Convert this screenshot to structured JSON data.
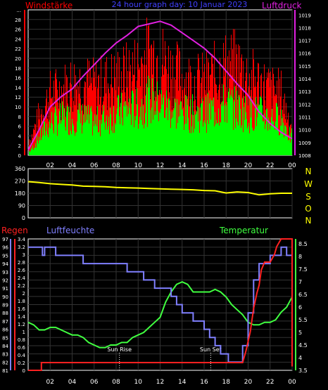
{
  "header": {
    "left_label": "Windstärke",
    "center_label": "24 hour graph day: 10 Januar 2023",
    "right_label": "Luftdruck"
  },
  "middle": {
    "compass_labels": [
      "N",
      "W",
      "S",
      "O",
      "N"
    ]
  },
  "bottom_header": {
    "rain_label": "Regen",
    "humidity_label": "Luftfeuchte",
    "temperature_label": "Temperatur"
  },
  "annotations": {
    "sunrise": "Sun Rise",
    "sunset": "Sun Set"
  },
  "colors": {
    "wind_gust": "#ff0000",
    "wind_avg": "#00ff00",
    "pressure": "#e020e0",
    "direction": "#ffff00",
    "humidity": "#8080ff",
    "temperature": "#40ff40",
    "rain": "#ff2020",
    "grid": "#333333",
    "axis_text": "#ffffff"
  },
  "chart_data": [
    {
      "type": "line",
      "name": "wind_pressure",
      "x_ticks": [
        "02",
        "04",
        "06",
        "08",
        "10",
        "12",
        "14",
        "16",
        "18",
        "20",
        "22",
        "00"
      ],
      "wind_axis_ticks": [
        "0",
        "2",
        "4",
        "6",
        "8",
        "10",
        "12",
        "14",
        "16",
        "18",
        "20",
        "22",
        "24",
        "26",
        "28",
        "..."
      ],
      "pressure_axis_ticks": [
        "1008",
        "1009",
        "1010",
        "1011",
        "1012",
        "1013",
        "1014",
        "1015",
        "1016",
        "1017",
        "1018",
        "1019"
      ],
      "wind_ylim": [
        0,
        30
      ],
      "pressure_ylim": [
        1008,
        1019.4
      ],
      "series": [
        {
          "name": "Windstärke",
          "kind": "gust",
          "x": [
            0.2,
            1,
            2,
            3,
            4,
            5,
            6,
            7,
            8,
            9,
            10,
            11,
            12,
            13,
            14,
            15,
            16,
            17,
            18,
            19,
            20,
            21,
            22,
            23,
            23.8
          ],
          "values": [
            4,
            10,
            15,
            16,
            18,
            18,
            17,
            18,
            19,
            20,
            22,
            25,
            24,
            21,
            19,
            18,
            18,
            20,
            22,
            22,
            19,
            18,
            16,
            15,
            8
          ]
        },
        {
          "name": "Windstärke",
          "kind": "average",
          "x": [
            0.2,
            1,
            2,
            3,
            4,
            5,
            6,
            7,
            8,
            9,
            10,
            11,
            12,
            13,
            14,
            15,
            16,
            17,
            18,
            19,
            20,
            21,
            22,
            23,
            23.8
          ],
          "values": [
            1,
            4,
            7,
            8,
            8,
            8,
            7,
            8,
            9,
            10,
            10,
            12,
            11,
            10,
            9,
            9,
            9,
            10,
            11,
            10,
            9,
            9,
            8,
            8,
            4
          ]
        },
        {
          "name": "Luftdruck",
          "x": [
            0,
            1,
            2,
            3,
            4,
            5,
            6,
            7,
            8,
            9,
            10,
            11,
            12,
            13,
            14,
            15,
            16,
            17,
            18,
            19,
            20,
            21,
            22,
            23,
            24
          ],
          "values": [
            1008.4,
            1010,
            1011.8,
            1012.6,
            1013.2,
            1014.2,
            1015.1,
            1016,
            1016.8,
            1017.4,
            1018.1,
            1018.3,
            1018.5,
            1018.2,
            1017.6,
            1017,
            1016.4,
            1015.6,
            1014.6,
            1013.6,
            1012.7,
            1011.4,
            1010.5,
            1009.8,
            1009.3
          ]
        }
      ]
    },
    {
      "type": "line",
      "name": "wind_direction",
      "x_ticks": [
        "02",
        "04",
        "06",
        "08",
        "10",
        "12",
        "14",
        "16",
        "18",
        "20",
        "22",
        "00"
      ],
      "y_ticks": [
        "0",
        "90",
        "180",
        "270",
        "360"
      ],
      "ylim": [
        0,
        360
      ],
      "series": [
        {
          "name": "direction",
          "x": [
            0,
            1,
            2,
            3,
            4,
            5,
            6,
            7,
            8,
            9,
            10,
            11,
            12,
            13,
            14,
            15,
            16,
            17,
            18,
            19,
            20,
            21,
            22,
            23,
            24
          ],
          "values": [
            265,
            258,
            250,
            245,
            240,
            232,
            230,
            228,
            222,
            220,
            218,
            215,
            212,
            210,
            208,
            205,
            200,
            198,
            182,
            190,
            185,
            168,
            176,
            180,
            180
          ]
        }
      ]
    },
    {
      "type": "line",
      "name": "rain_humidity_temperature",
      "x_ticks": [
        "02",
        "04",
        "06",
        "08",
        "10",
        "12",
        "14",
        "16",
        "18",
        "20",
        "22",
        "00"
      ],
      "rain_axis_ticks": [
        "0",
        "0.2",
        "0.4",
        "0.6",
        "0.8",
        "1",
        "1.2",
        "1.4",
        "1.6",
        "1.8",
        "2",
        "2.2",
        "2.4",
        "2.6",
        "2.8",
        "3",
        "3.2",
        "3.4"
      ],
      "humidity_axis_ticks": [
        "81",
        "82",
        "83",
        "84",
        "85",
        "86",
        "87",
        "88",
        "89",
        "90",
        "91",
        "92",
        "93",
        "94",
        "95",
        "96",
        "97"
      ],
      "temperature_axis_ticks": [
        "3.5",
        "4",
        "4.5",
        "5",
        "5.5",
        "6",
        "6.5",
        "7",
        "7.5",
        "8",
        "8.5"
      ],
      "rain_ylim": [
        0,
        3.4
      ],
      "humidity_ylim": [
        81,
        97
      ],
      "temperature_ylim": [
        3.5,
        8.7
      ],
      "series": [
        {
          "name": "Regen",
          "x": [
            0,
            1.2,
            1.2,
            19.5,
            19.8,
            20.2,
            20.5,
            20.8,
            21,
            21.2,
            21.5,
            22,
            22.4,
            22.6,
            23,
            23.6,
            24,
            24
          ],
          "values": [
            0,
            0,
            0.2,
            0.2,
            0.5,
            1,
            1.6,
            2,
            2.2,
            2.6,
            2.8,
            2.8,
            3,
            3.2,
            3.4,
            3.4,
            3.4,
            0.1
          ]
        },
        {
          "name": "Luftfeuchte",
          "x": [
            0,
            1.2,
            1.3,
            1.5,
            2.5,
            3.5,
            5,
            6,
            7,
            8,
            9,
            10,
            10.5,
            11,
            11.5,
            12,
            13,
            13.5,
            14,
            15,
            16,
            16.5,
            17,
            17.5,
            18,
            18.2,
            18.5,
            19,
            19.5,
            20,
            20.5,
            21,
            22,
            23,
            23.5,
            24
          ],
          "values": [
            96,
            96,
            95,
            96,
            95,
            95,
            94,
            94,
            94,
            94,
            93,
            93,
            92,
            92,
            91,
            91,
            90,
            89,
            88,
            87,
            86,
            85,
            84,
            83,
            83,
            82,
            82,
            82,
            84,
            88,
            92,
            94,
            95,
            96,
            95,
            94
          ]
        },
        {
          "name": "Temperatur",
          "x": [
            0,
            0.5,
            1,
            1.5,
            2,
            2.5,
            3,
            3.5,
            4,
            4.5,
            5,
            5.5,
            6,
            6.5,
            7,
            7.5,
            8,
            8.5,
            9,
            9.5,
            10,
            10.5,
            11,
            11.5,
            12,
            12.5,
            13,
            13.5,
            14,
            14.5,
            15,
            15.5,
            16,
            16.5,
            17,
            17.5,
            18,
            18.5,
            19,
            19.5,
            20,
            20.5,
            21,
            21.5,
            22,
            22.5,
            23,
            23.5,
            24
          ],
          "values": [
            5.4,
            5.3,
            5.1,
            5.1,
            5.2,
            5.2,
            5.1,
            5,
            4.9,
            4.9,
            4.8,
            4.6,
            4.5,
            4.4,
            4.4,
            4.5,
            4.5,
            4.6,
            4.6,
            4.8,
            4.9,
            5,
            5.2,
            5.4,
            5.6,
            6.2,
            6.6,
            6.9,
            7,
            6.9,
            6.6,
            6.6,
            6.6,
            6.6,
            6.7,
            6.6,
            6.4,
            6.1,
            5.9,
            5.7,
            5.4,
            5.3,
            5.3,
            5.4,
            5.4,
            5.5,
            5.8,
            6,
            6.4
          ]
        }
      ],
      "markers": [
        {
          "label": "Sun Rise",
          "x": 8.3
        },
        {
          "label": "Sun Set",
          "x": 16.6
        }
      ]
    }
  ]
}
